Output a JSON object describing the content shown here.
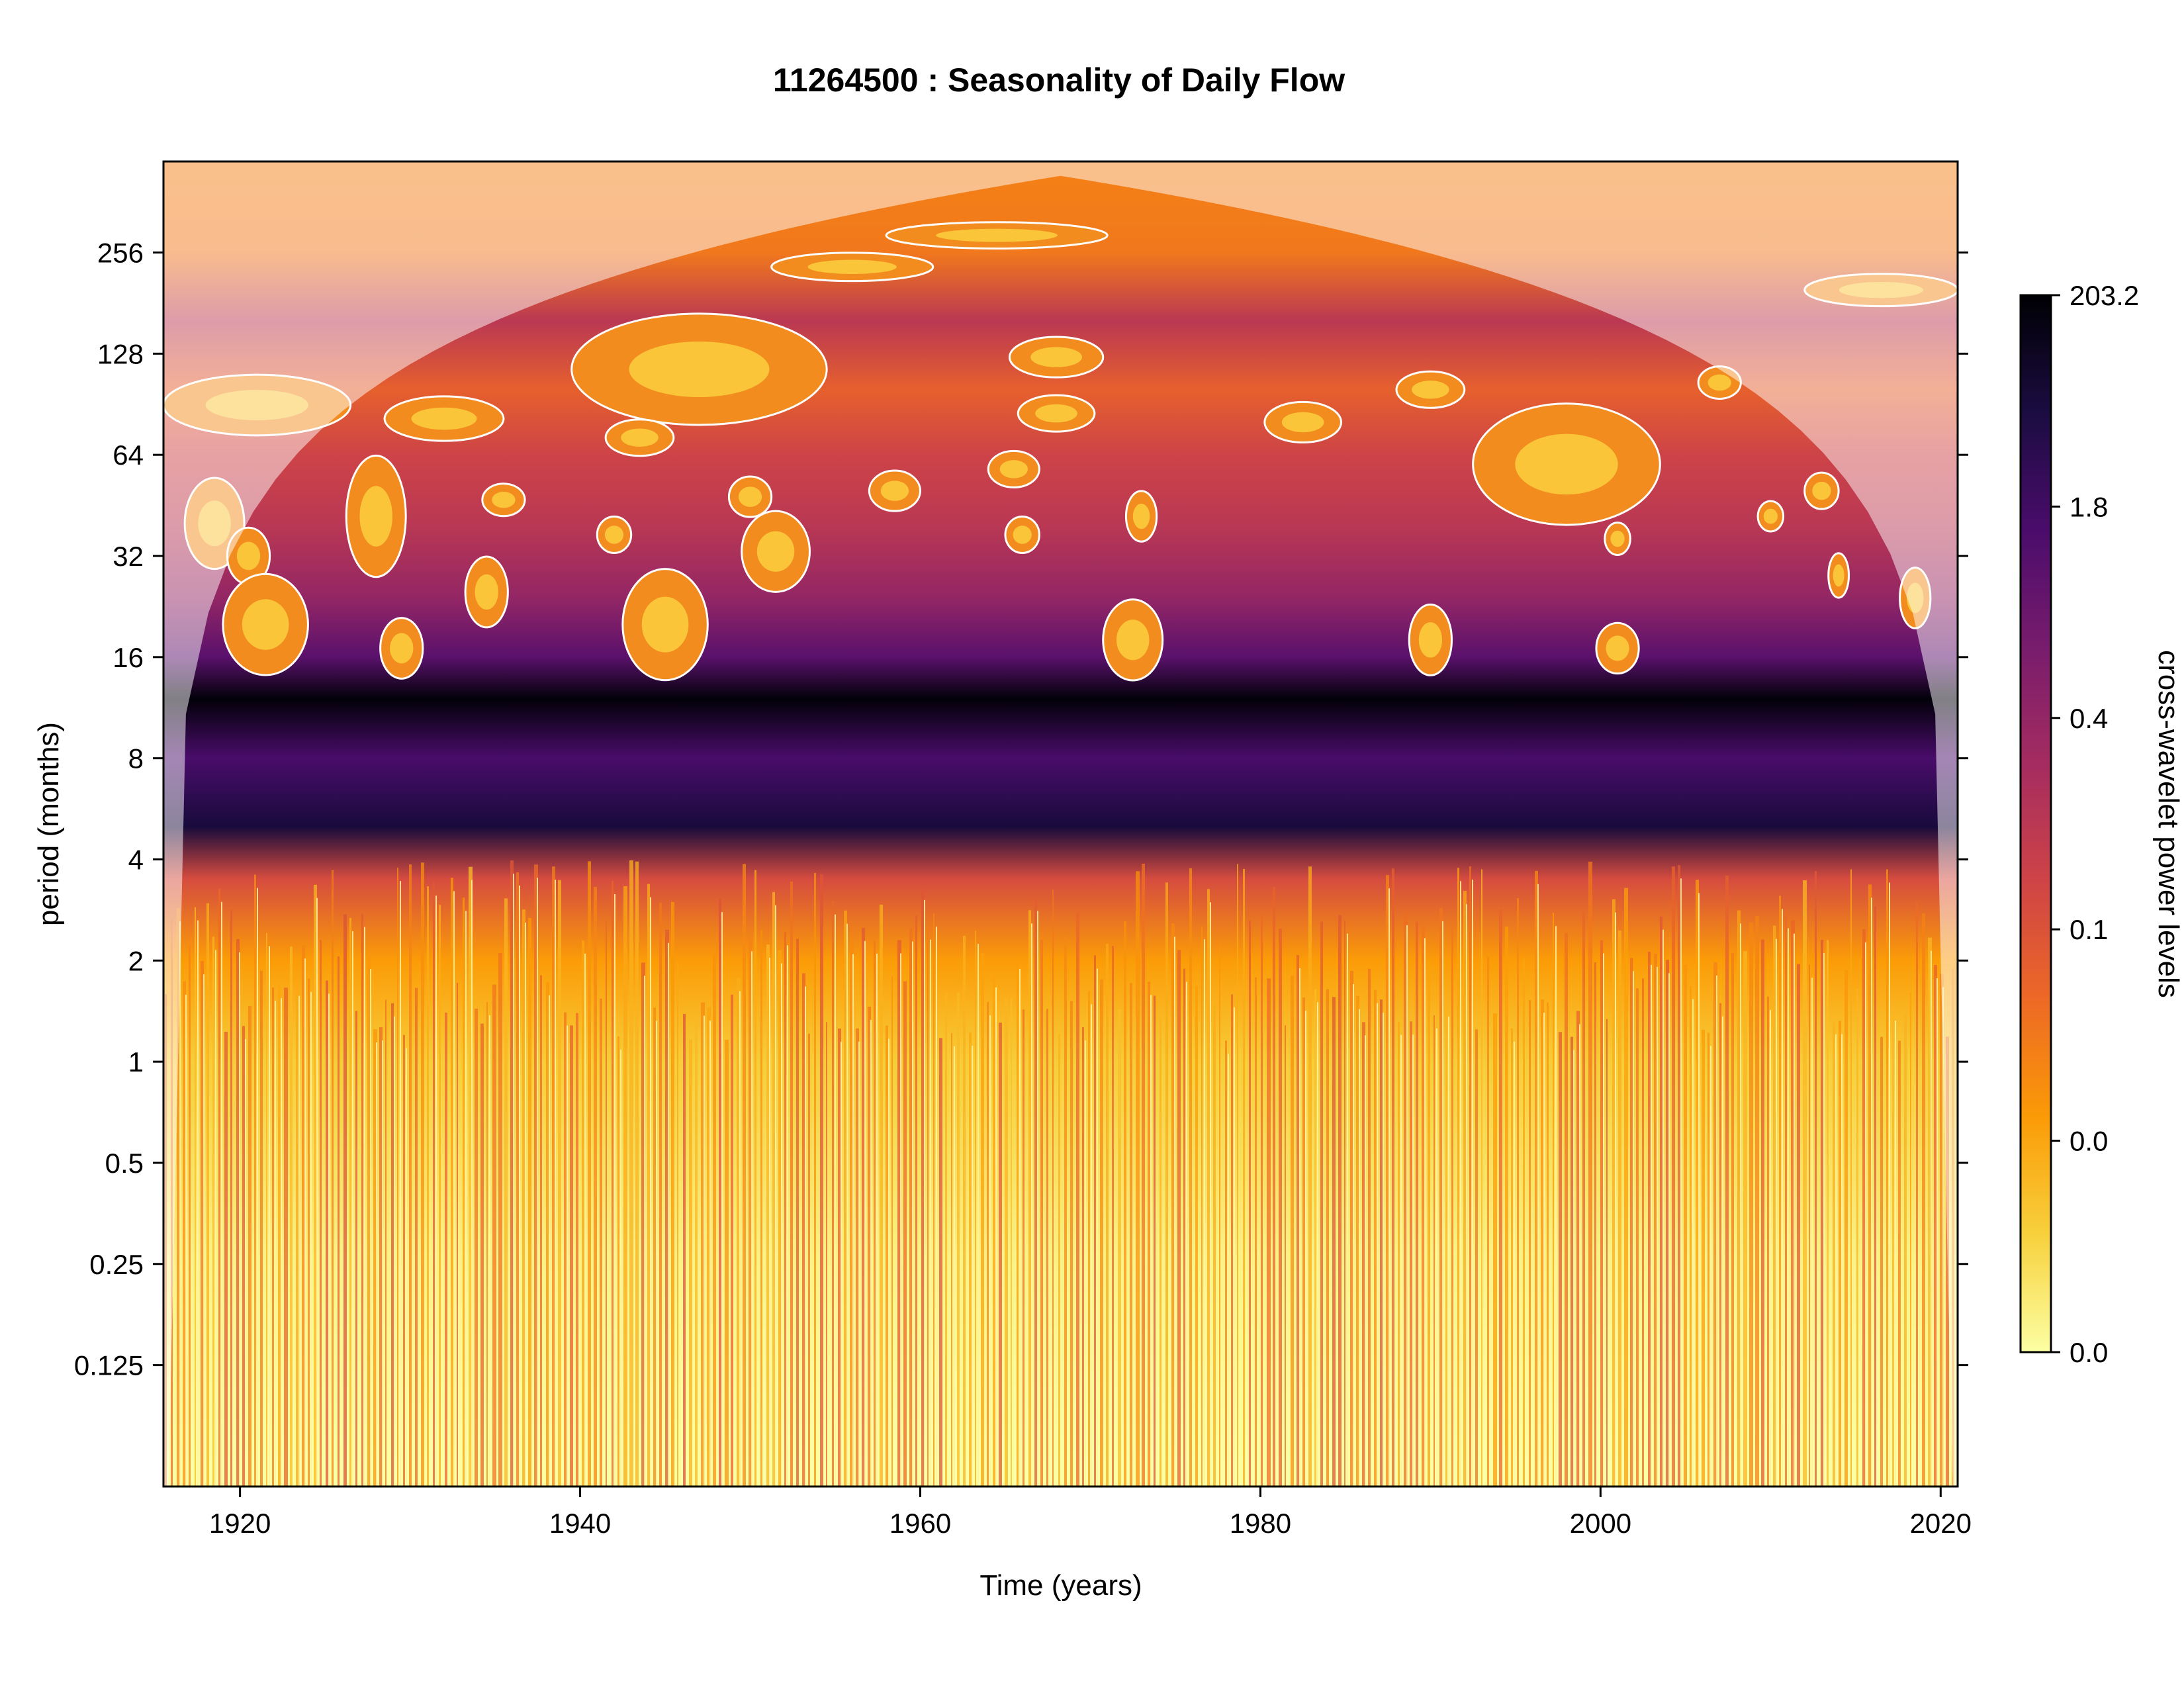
{
  "chart_data": {
    "type": "heatmap",
    "title": "11264500 : Seasonality of Daily Flow",
    "xlabel": "Time (years)",
    "ylabel": "period (months)",
    "xlim": [
      1915.5,
      2021.0
    ],
    "ylim_log2": [
      -4.2,
      8.9
    ],
    "x_ticks": [
      {
        "value": 1920,
        "label": "1920"
      },
      {
        "value": 1940,
        "label": "1940"
      },
      {
        "value": 1960,
        "label": "1960"
      },
      {
        "value": 1980,
        "label": "1980"
      },
      {
        "value": 2000,
        "label": "2000"
      },
      {
        "value": 2020,
        "label": "2020"
      }
    ],
    "y_ticks": [
      {
        "value": 256,
        "label": "256"
      },
      {
        "value": 128,
        "label": "128"
      },
      {
        "value": 64,
        "label": "64"
      },
      {
        "value": 32,
        "label": "32"
      },
      {
        "value": 16,
        "label": "16"
      },
      {
        "value": 8,
        "label": "8"
      },
      {
        "value": 4,
        "label": "4"
      },
      {
        "value": 2,
        "label": "2"
      },
      {
        "value": 1,
        "label": "1"
      },
      {
        "value": 0.5,
        "label": "0.5"
      },
      {
        "value": 0.25,
        "label": "0.25"
      },
      {
        "value": 0.125,
        "label": "0.125"
      }
    ],
    "colorbar": {
      "label": "cross-wavelet power levels",
      "labels": [
        "203.2",
        "1.8",
        "0.4",
        "0.1",
        "0.0",
        "0.0"
      ],
      "colors": [
        "#fcffa4",
        "#f7d13d",
        "#fb9b06",
        "#ed6925",
        "#cf4446",
        "#a52c60",
        "#781c6d",
        "#4a0c6b",
        "#1b0c41",
        "#000004"
      ]
    },
    "bands": [
      {
        "period": 0.0625,
        "level": 0.0
      },
      {
        "period": 0.25,
        "level": 0.03
      },
      {
        "period": 1,
        "level": 0.12
      },
      {
        "period": 2,
        "level": 0.22
      },
      {
        "period": 3.5,
        "level": 0.42
      },
      {
        "period": 5,
        "level": 0.9
      },
      {
        "period": 8,
        "level": 0.78
      },
      {
        "period": 12,
        "level": 0.99
      },
      {
        "period": 16,
        "level": 0.74
      },
      {
        "period": 24,
        "level": 0.6
      },
      {
        "period": 40,
        "level": 0.5
      },
      {
        "period": 64,
        "level": 0.45
      },
      {
        "period": 100,
        "level": 0.36
      },
      {
        "period": 160,
        "level": 0.5
      },
      {
        "period": 256,
        "level": 0.3
      },
      {
        "period": 475,
        "level": 0.28
      }
    ],
    "significant_regions": [
      {
        "x": 1947.0,
        "period": 115,
        "wx": 15,
        "hp": 0.55
      },
      {
        "x": 1956.0,
        "period": 232,
        "wx": 9.5,
        "hp": 0.14
      },
      {
        "x": 1964.5,
        "period": 288,
        "wx": 13,
        "hp": 0.13
      },
      {
        "x": 1968.0,
        "period": 125,
        "wx": 5.5,
        "hp": 0.2
      },
      {
        "x": 1968.0,
        "period": 85,
        "wx": 4.5,
        "hp": 0.18
      },
      {
        "x": 1932.0,
        "period": 82,
        "wx": 7,
        "hp": 0.22
      },
      {
        "x": 1943.5,
        "period": 72,
        "wx": 4,
        "hp": 0.18
      },
      {
        "x": 1982.5,
        "period": 80,
        "wx": 4.5,
        "hp": 0.2
      },
      {
        "x": 1990.0,
        "period": 100,
        "wx": 4,
        "hp": 0.18
      },
      {
        "x": 2007.0,
        "period": 105,
        "wx": 2.5,
        "hp": 0.16
      },
      {
        "x": 1998.0,
        "period": 60,
        "wx": 11,
        "hp": 0.6
      },
      {
        "x": 2016.5,
        "period": 198,
        "wx": 9,
        "hp": 0.16
      },
      {
        "x": 1921.0,
        "period": 90,
        "wx": 11,
        "hp": 0.3
      },
      {
        "x": 1918.5,
        "period": 40,
        "wx": 3.5,
        "hp": 0.45
      },
      {
        "x": 1920.5,
        "period": 32,
        "wx": 2.5,
        "hp": 0.28
      },
      {
        "x": 1921.5,
        "period": 20,
        "wx": 5,
        "hp": 0.5
      },
      {
        "x": 1928.0,
        "period": 42,
        "wx": 3.5,
        "hp": 0.6
      },
      {
        "x": 1929.5,
        "period": 17,
        "wx": 2.5,
        "hp": 0.3
      },
      {
        "x": 1935.5,
        "period": 47,
        "wx": 2.5,
        "hp": 0.16
      },
      {
        "x": 1934.5,
        "period": 25,
        "wx": 2.5,
        "hp": 0.35
      },
      {
        "x": 1942.0,
        "period": 37,
        "wx": 2,
        "hp": 0.18
      },
      {
        "x": 1945.0,
        "period": 20,
        "wx": 5,
        "hp": 0.55
      },
      {
        "x": 1950.0,
        "period": 48,
        "wx": 2.5,
        "hp": 0.2
      },
      {
        "x": 1951.5,
        "period": 33,
        "wx": 4,
        "hp": 0.4
      },
      {
        "x": 1958.5,
        "period": 50,
        "wx": 3,
        "hp": 0.2
      },
      {
        "x": 1965.5,
        "period": 58,
        "wx": 3,
        "hp": 0.18
      },
      {
        "x": 1966.0,
        "period": 37,
        "wx": 2,
        "hp": 0.18
      },
      {
        "x": 1973.0,
        "period": 42,
        "wx": 1.8,
        "hp": 0.25
      },
      {
        "x": 1972.5,
        "period": 18,
        "wx": 3.5,
        "hp": 0.4
      },
      {
        "x": 1990.0,
        "period": 18,
        "wx": 2.5,
        "hp": 0.35
      },
      {
        "x": 2001.0,
        "period": 17,
        "wx": 2.5,
        "hp": 0.25
      },
      {
        "x": 2001.0,
        "period": 36,
        "wx": 1.5,
        "hp": 0.16
      },
      {
        "x": 2013.0,
        "period": 50,
        "wx": 2,
        "hp": 0.18
      },
      {
        "x": 2010.0,
        "period": 42,
        "wx": 1.5,
        "hp": 0.15
      },
      {
        "x": 2014.0,
        "period": 28,
        "wx": 1.2,
        "hp": 0.22
      },
      {
        "x": 2018.5,
        "period": 24,
        "wx": 1.8,
        "hp": 0.3
      }
    ]
  }
}
